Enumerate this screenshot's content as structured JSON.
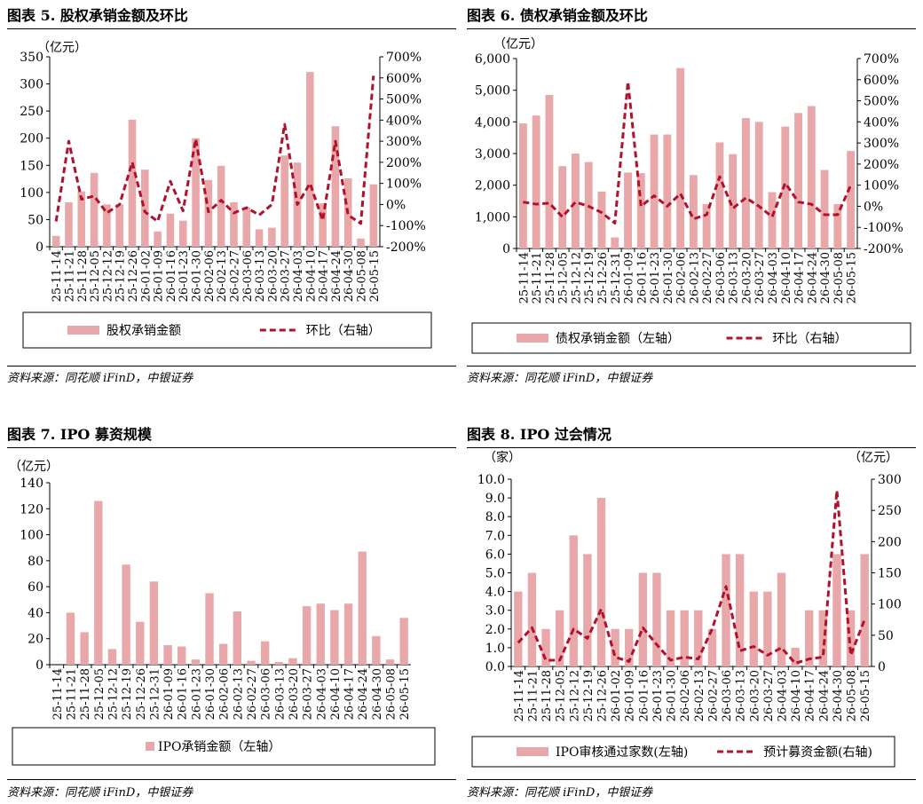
{
  "colors": {
    "bar": "#e8a8aa",
    "line": "#b0112b"
  },
  "charts": [
    {
      "title": "图表 5. 股权承销金额及环比",
      "source": "资料来源：同花顺 iFinD，中银证券",
      "chart_data": {
        "type": "bar",
        "unit_left": "（亿元）",
        "unit_right": "",
        "categories": [
          "25-11-14",
          "25-11-21",
          "25-11-28",
          "25-12-05",
          "25-12-12",
          "25-12-19",
          "25-12-26",
          "26-01-02",
          "26-01-09",
          "26-01-16",
          "26-01-23",
          "26-01-30",
          "26-02-06",
          "26-02-13",
          "26-02-27",
          "26-03-06",
          "26-03-13",
          "26-03-20",
          "26-03-27",
          "26-04-03",
          "26-04-10",
          "26-04-17",
          "26-04-24",
          "26-04-30",
          "26-05-08",
          "26-05-15"
        ],
        "ylim": [
          0,
          350
        ],
        "yticks": [
          "0",
          "50",
          "100",
          "150",
          "200",
          "250",
          "300",
          "350"
        ],
        "y2lim": [
          -200,
          700
        ],
        "y2ticks": [
          "-200%",
          "-100%",
          "0%",
          "100%",
          "200%",
          "300%",
          "400%",
          "500%",
          "600%",
          "700%"
        ],
        "series": [
          {
            "name": "股权承销金额",
            "kind": "bar",
            "axis": "left",
            "values": [
              20,
              82,
              102,
              136,
              78,
              78,
              234,
              142,
              28,
              61,
              48,
              200,
              123,
              149,
              82,
              72,
              32,
              35,
              168,
              155,
              322,
              80,
              222,
              126,
              15,
              115
            ]
          },
          {
            "name": "环比（右轴）",
            "kind": "line",
            "axis": "right",
            "values": [
              -80,
              300,
              25,
              40,
              -40,
              0,
              200,
              -35,
              -80,
              110,
              -30,
              310,
              -35,
              20,
              -40,
              -15,
              -50,
              0,
              380,
              0,
              100,
              -75,
              300,
              -50,
              -90,
              610
            ]
          }
        ]
      }
    },
    {
      "title": "图表 6. 债权承销金额及环比",
      "source": "资料来源：同花顺 iFinD，中银证券",
      "chart_data": {
        "type": "bar",
        "unit_left": "（亿元）",
        "unit_right": "",
        "categories": [
          "25-11-14",
          "25-11-21",
          "25-11-28",
          "25-12-05",
          "25-12-12",
          "25-12-19",
          "25-12-26",
          "25-12-31",
          "26-01-09",
          "26-01-16",
          "26-01-23",
          "26-01-30",
          "26-02-06",
          "26-02-13",
          "26-02-27",
          "26-03-06",
          "26-03-13",
          "26-03-20",
          "26-03-27",
          "26-04-03",
          "26-04-10",
          "26-04-17",
          "26-04-24",
          "26-04-30",
          "26-05-08",
          "26-05-15"
        ],
        "ylim": [
          0,
          6000
        ],
        "yticks": [
          "0",
          "1,000",
          "2,000",
          "3,000",
          "4,000",
          "5,000",
          "6,000"
        ],
        "y2lim": [
          -200,
          700
        ],
        "y2ticks": [
          "-200%",
          "-100%",
          "0%",
          "100%",
          "200%",
          "300%",
          "400%",
          "500%",
          "600%",
          "700%"
        ],
        "series": [
          {
            "name": "债权承销金额（左轴）",
            "kind": "bar",
            "axis": "left",
            "values": [
              3950,
              4200,
              4850,
              2600,
              3000,
              2730,
              1800,
              350,
              2400,
              2380,
              3600,
              3600,
              5700,
              2320,
              1400,
              3350,
              2980,
              4120,
              4000,
              1780,
              3850,
              4280,
              4500,
              2480,
              1400,
              3080
            ]
          },
          {
            "name": "环比（右轴）",
            "kind": "line",
            "axis": "right",
            "values": [
              20,
              10,
              15,
              -50,
              20,
              0,
              -30,
              -80,
              590,
              0,
              50,
              0,
              60,
              -60,
              -40,
              140,
              -10,
              40,
              0,
              -50,
              110,
              20,
              10,
              -40,
              -40,
              100
            ]
          }
        ]
      }
    },
    {
      "title": "图表 7. IPO 募资规模",
      "source": "资料来源：同花顺 iFinD，中银证券",
      "chart_data": {
        "type": "bar",
        "unit_left": "（亿元）",
        "unit_right": "",
        "categories": [
          "25-11-14",
          "25-11-21",
          "25-11-28",
          "25-12-05",
          "25-12-12",
          "25-12-19",
          "25-12-26",
          "25-12-31",
          "26-01-09",
          "26-01-16",
          "26-01-23",
          "26-01-30",
          "26-02-06",
          "26-02-13",
          "26-02-27",
          "26-03-06",
          "26-03-13",
          "26-03-20",
          "26-03-27",
          "26-04-03",
          "26-04-10",
          "26-04-17",
          "26-04-24",
          "26-04-30",
          "26-05-08",
          "26-05-15"
        ],
        "ylim": [
          0,
          140
        ],
        "yticks": [
          "0",
          "20",
          "40",
          "60",
          "80",
          "100",
          "120",
          "140"
        ],
        "series": [
          {
            "name": "IPO承销金额（左轴）",
            "kind": "bar",
            "axis": "left",
            "values": [
              0,
              40,
              25,
              126,
              12,
              77,
              33,
              64,
              15,
              14,
              4,
              55,
              16,
              41,
              3,
              18,
              2,
              5,
              45,
              47,
              42,
              47,
              87,
              22,
              4,
              36
            ]
          }
        ]
      }
    },
    {
      "title": "图表 8. IPO 过会情况",
      "source": "资料来源：同花顺 iFinD，中银证券",
      "chart_data": {
        "type": "bar",
        "unit_left": "（家）",
        "unit_right": "（亿元）",
        "categories": [
          "25-11-14",
          "25-11-21",
          "25-11-28",
          "25-12-05",
          "25-12-12",
          "25-12-19",
          "25-12-26",
          "26-01-02",
          "26-01-09",
          "26-01-16",
          "26-01-23",
          "26-01-30",
          "26-02-06",
          "26-02-13",
          "26-02-27",
          "26-03-06",
          "26-03-13",
          "26-03-20",
          "26-03-27",
          "26-04-03",
          "26-04-10",
          "26-04-17",
          "26-04-24",
          "26-04-30",
          "26-05-08",
          "26-05-15"
        ],
        "ylim": [
          0,
          10
        ],
        "yticks": [
          "0.0",
          "1.0",
          "2.0",
          "3.0",
          "4.0",
          "5.0",
          "6.0",
          "7.0",
          "8.0",
          "9.0",
          "10.0"
        ],
        "y2lim": [
          0,
          300
        ],
        "y2ticks": [
          "0",
          "50",
          "100",
          "150",
          "200",
          "250",
          "300"
        ],
        "series": [
          {
            "name": "IPO审核通过家数(左轴)",
            "kind": "bar",
            "axis": "left",
            "values": [
              4,
              5,
              2,
              3,
              7,
              6,
              9,
              2,
              2,
              5,
              5,
              3,
              3,
              3,
              2,
              6,
              6,
              4,
              4,
              5,
              1,
              3,
              3,
              6,
              3,
              6
            ]
          },
          {
            "name": "预计募资金额(右轴)",
            "kind": "line",
            "axis": "right",
            "values": [
              38,
              62,
              10,
              10,
              60,
              45,
              92,
              15,
              8,
              62,
              35,
              10,
              15,
              12,
              60,
              128,
              25,
              32,
              18,
              30,
              5,
              12,
              15,
              282,
              18,
              75
            ]
          }
        ]
      }
    }
  ]
}
